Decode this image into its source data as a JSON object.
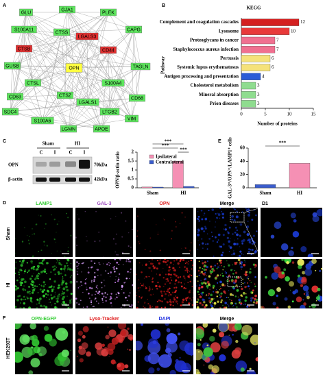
{
  "figure": {
    "panel_letters": [
      "A",
      "B",
      "C",
      "D",
      "E",
      "F"
    ]
  },
  "network": {
    "nodes": [
      {
        "label": "GLU",
        "color": "#5ee65e"
      },
      {
        "label": "GJA1",
        "color": "#5ee65e"
      },
      {
        "label": "PLEK",
        "color": "#5ee65e"
      },
      {
        "label": "S100A11",
        "color": "#5ee65e"
      },
      {
        "label": "CTSS",
        "color": "#5ee65e"
      },
      {
        "label": "LGALS3",
        "color": "#e03030"
      },
      {
        "label": "CAPG",
        "color": "#5ee65e"
      },
      {
        "label": "CTSB",
        "color": "#e03030"
      },
      {
        "label": "CD44",
        "color": "#e03030"
      },
      {
        "label": "GUSB",
        "color": "#5ee65e"
      },
      {
        "label": "OPN",
        "color": "#ffff40"
      },
      {
        "label": "TAGLN",
        "color": "#5ee65e"
      },
      {
        "label": "CTSL",
        "color": "#5ee65e"
      },
      {
        "label": "S100A4",
        "color": "#5ee65e"
      },
      {
        "label": "CD63",
        "color": "#5ee65e"
      },
      {
        "label": "CD68",
        "color": "#5ee65e"
      },
      {
        "label": "CTSZ",
        "color": "#5ee65e"
      },
      {
        "label": "LGALS1",
        "color": "#5ee65e"
      },
      {
        "label": "LTGB2",
        "color": "#5ee65e"
      },
      {
        "label": "SDC4",
        "color": "#5ee65e"
      },
      {
        "label": "VIM",
        "color": "#5ee65e"
      },
      {
        "label": "S100A6",
        "color": "#5ee65e"
      },
      {
        "label": "LGMN",
        "color": "#5ee65e"
      },
      {
        "label": "APOE",
        "color": "#5ee65e"
      }
    ]
  },
  "chart_data": [
    {
      "type": "bar",
      "orientation": "horizontal",
      "title": "KEGG",
      "ylabel": "Pathway",
      "xlabel": "Number of proteins",
      "categories": [
        "Complement and coagulation cascades",
        "Lysosome",
        "Proteoglycans in cancer",
        "Staphylococcus aureus infection",
        "Pertussis",
        "Systemic lupus erythematosus",
        "Antigen processing and presentation",
        "Cholesterol metabolism",
        "Mineral absorption",
        "Prion diseases"
      ],
      "values": [
        12,
        10,
        7,
        7,
        6,
        6,
        4,
        3,
        3,
        3
      ],
      "colors": [
        "#d42020",
        "#e83a3a",
        "#f07090",
        "#f07090",
        "#f5e27a",
        "#f5e27a",
        "#2a5bd7",
        "#8fdc8f",
        "#8fdc8f",
        "#8fdc8f"
      ],
      "xlim": [
        0,
        15
      ],
      "xticks": [
        0,
        5,
        10,
        15
      ]
    },
    {
      "type": "bar",
      "ylabel": "OPN/β-actin ratio",
      "categories": [
        "Sham",
        "HI"
      ],
      "series": [
        {
          "name": "Ipsilateral",
          "color": "#f590b4",
          "values": [
            0.05,
            1.5
          ]
        },
        {
          "name": "Contralateral",
          "color": "#3a5ccc",
          "values": [
            0.04,
            0.08
          ]
        }
      ],
      "ylim": [
        0,
        2
      ],
      "yticks": [
        0,
        0.5,
        1,
        1.5,
        2
      ],
      "annotations": [
        "***",
        "***",
        "***"
      ]
    },
    {
      "type": "bar",
      "ylabel": "GAL-3⁺/OPN⁺/LAMP1⁺ cells",
      "categories": [
        "Sham",
        "HI"
      ],
      "values": [
        5,
        37
      ],
      "colors": [
        "#3a5ccc",
        "#f590b4"
      ],
      "ylim": [
        0,
        60
      ],
      "yticks": [
        0,
        20,
        40,
        60
      ],
      "annotations": [
        "***"
      ]
    }
  ],
  "blot": {
    "groups": [
      "Sham",
      "HI"
    ],
    "lanes": [
      "C",
      "I",
      "C",
      "I"
    ],
    "rows": [
      "OPN",
      "β-actin"
    ],
    "sizes": [
      "70kDa",
      "42kDa"
    ]
  },
  "imaging": {
    "d_columns": [
      {
        "label": "LAMP1",
        "color": "#33cc33"
      },
      {
        "label": "GAL-3",
        "color": "#a050c0"
      },
      {
        "label": "OPN",
        "color": "#e02020"
      },
      {
        "label": "Merge",
        "color": "#000000"
      },
      {
        "label": "D1",
        "color": "#000000"
      }
    ],
    "d_rows": [
      "Sham",
      "HI"
    ],
    "f_columns": [
      {
        "label": "OPN-EGFP",
        "color": "#33cc33"
      },
      {
        "label": "Lyso-Tracker",
        "color": "#e02020"
      },
      {
        "label": "DAPI",
        "color": "#2030e0"
      },
      {
        "label": "Merge",
        "color": "#000000"
      }
    ],
    "f_row": "HEK293T"
  }
}
